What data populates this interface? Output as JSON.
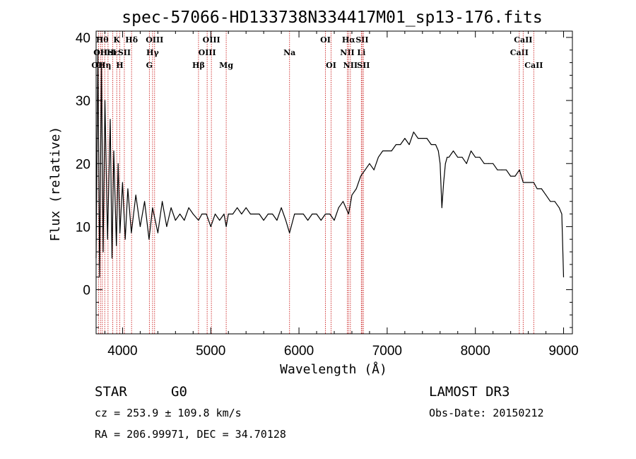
{
  "chart_data": {
    "type": "line",
    "title": "spec-57066-HD133738N334417M01_sp13-176.fits",
    "xlabel": "Wavelength (Å)",
    "ylabel": "Flux (relative)",
    "xlim": [
      3700,
      9100
    ],
    "ylim": [
      -7,
      41
    ],
    "xticks": [
      4000,
      5000,
      6000,
      7000,
      8000,
      9000
    ],
    "yticks": [
      0,
      10,
      20,
      30,
      40
    ],
    "grid": false,
    "series": [
      {
        "name": "flux",
        "x": [
          3700,
          3720,
          3740,
          3760,
          3780,
          3800,
          3830,
          3860,
          3880,
          3900,
          3930,
          3950,
          3970,
          4000,
          4030,
          4060,
          4100,
          4150,
          4200,
          4250,
          4300,
          4340,
          4400,
          4450,
          4500,
          4550,
          4600,
          4650,
          4700,
          4750,
          4800,
          4861,
          4900,
          4950,
          5000,
          5050,
          5100,
          5150,
          5175,
          5200,
          5250,
          5300,
          5350,
          5400,
          5450,
          5500,
          5550,
          5600,
          5650,
          5700,
          5750,
          5800,
          5850,
          5893,
          5950,
          6000,
          6050,
          6100,
          6150,
          6200,
          6250,
          6300,
          6350,
          6400,
          6450,
          6500,
          6563,
          6600,
          6650,
          6700,
          6750,
          6800,
          6850,
          6900,
          6950,
          7000,
          7050,
          7100,
          7150,
          7200,
          7250,
          7300,
          7350,
          7400,
          7450,
          7500,
          7550,
          7580,
          7600,
          7620,
          7640,
          7660,
          7680,
          7700,
          7750,
          7800,
          7850,
          7900,
          7950,
          8000,
          8050,
          8100,
          8150,
          8200,
          8250,
          8300,
          8350,
          8400,
          8450,
          8500,
          8542,
          8600,
          8662,
          8700,
          8750,
          8800,
          8850,
          8900,
          8950,
          8980,
          9000
        ],
        "y": [
          5,
          38,
          2,
          36,
          6,
          30,
          8,
          27,
          5,
          22,
          7,
          20,
          9,
          17,
          8,
          16,
          9,
          15,
          10,
          14,
          8,
          13,
          9,
          14,
          10,
          13,
          11,
          12,
          11,
          13,
          12,
          11,
          12,
          12,
          10,
          12,
          11,
          12,
          10,
          12,
          12,
          13,
          12,
          13,
          12,
          12,
          12,
          11,
          12,
          12,
          11,
          13,
          11,
          9,
          12,
          12,
          12,
          11,
          12,
          12,
          11,
          12,
          12,
          11,
          13,
          14,
          12,
          15,
          16,
          18,
          19,
          20,
          19,
          21,
          22,
          22,
          22,
          23,
          23,
          24,
          23,
          25,
          24,
          24,
          24,
          23,
          23,
          22,
          20,
          13,
          17,
          20,
          21,
          21,
          22,
          21,
          21,
          20,
          22,
          21,
          21,
          20,
          20,
          20,
          19,
          19,
          19,
          18,
          18,
          19,
          17,
          17,
          17,
          16,
          16,
          15,
          14,
          14,
          13,
          12,
          2
        ]
      }
    ],
    "line_markers": [
      {
        "wavelength": 3727,
        "labels": [
          "OII"
        ],
        "row": 3
      },
      {
        "wavelength": 3750,
        "labels": [
          "OII"
        ],
        "row": 2
      },
      {
        "wavelength": 3770,
        "labels": [
          "Hθ"
        ],
        "row": 1
      },
      {
        "wavelength": 3798,
        "labels": [
          "Hη"
        ],
        "row": 3
      },
      {
        "wavelength": 3835,
        "labels": [
          "HeI"
        ],
        "row": 2
      },
      {
        "wavelength": 3889,
        "labels": [
          "Hε"
        ],
        "row": 2
      },
      {
        "wavelength": 3934,
        "labels": [
          "K"
        ],
        "row": 1
      },
      {
        "wavelength": 3968,
        "labels": [
          "H"
        ],
        "row": 3
      },
      {
        "wavelength": 4020,
        "labels": [
          "SII"
        ],
        "row": 2
      },
      {
        "wavelength": 4102,
        "labels": [
          "Hδ"
        ],
        "row": 1
      },
      {
        "wavelength": 4304,
        "labels": [
          "G"
        ],
        "row": 3
      },
      {
        "wavelength": 4340,
        "labels": [
          "Hγ"
        ],
        "row": 2
      },
      {
        "wavelength": 4363,
        "labels": [
          "OIII"
        ],
        "row": 1
      },
      {
        "wavelength": 4861,
        "labels": [
          "Hβ"
        ],
        "row": 3
      },
      {
        "wavelength": 4959,
        "labels": [
          "OIII"
        ],
        "row": 2
      },
      {
        "wavelength": 5007,
        "labels": [
          "OIII"
        ],
        "row": 1
      },
      {
        "wavelength": 5175,
        "labels": [
          "Mg"
        ],
        "row": 3
      },
      {
        "wavelength": 5893,
        "labels": [
          "Na"
        ],
        "row": 2
      },
      {
        "wavelength": 6300,
        "labels": [
          "OI"
        ],
        "row": 1
      },
      {
        "wavelength": 6364,
        "labels": [
          "OI"
        ],
        "row": 3
      },
      {
        "wavelength": 6548,
        "labels": [
          "NII"
        ],
        "row": 2
      },
      {
        "wavelength": 6563,
        "labels": [
          "Hα"
        ],
        "row": 1
      },
      {
        "wavelength": 6583,
        "labels": [
          "NII"
        ],
        "row": 3
      },
      {
        "wavelength": 6707,
        "labels": [
          "Li"
        ],
        "row": 2
      },
      {
        "wavelength": 6716,
        "labels": [
          "SII"
        ],
        "row": 1
      },
      {
        "wavelength": 6731,
        "labels": [
          "SII"
        ],
        "row": 3
      },
      {
        "wavelength": 8498,
        "labels": [
          "CaII"
        ],
        "row": 2
      },
      {
        "wavelength": 8542,
        "labels": [
          "CaII"
        ],
        "row": 1
      },
      {
        "wavelength": 8662,
        "labels": [
          "CaII"
        ],
        "row": 3
      }
    ]
  },
  "info": {
    "object_class": "STAR",
    "subclass": "G0",
    "survey": "LAMOST DR3",
    "cz": "cz = 253.9 ± 109.8 km/s",
    "obs_date": "Obs-Date: 20150212",
    "coords": "RA = 206.99971, DEC =  34.70128"
  },
  "colors": {
    "line": "#000000",
    "marker": "#cc2222",
    "axis": "#000000"
  }
}
